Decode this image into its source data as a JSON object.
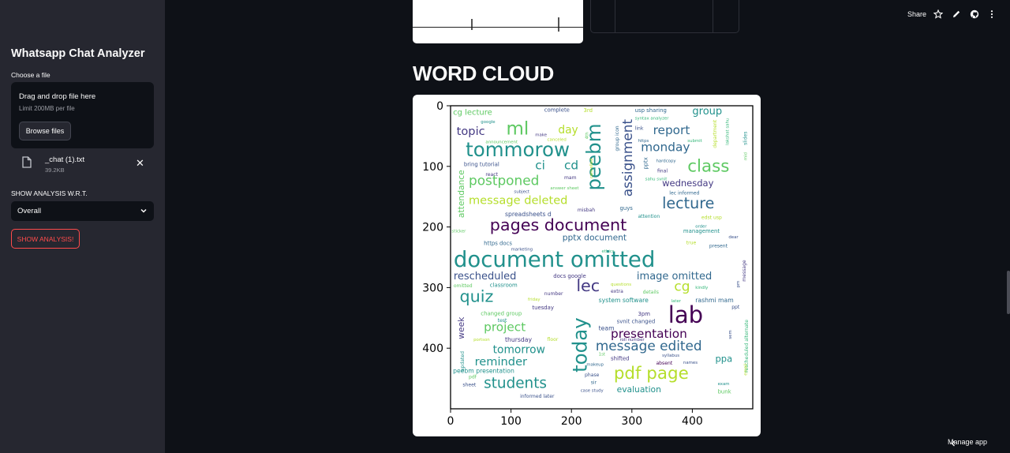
{
  "sidebar": {
    "title": "Whatsapp Chat Analyzer",
    "file_label": "Choose a file",
    "dropzone_text": "Drag and drop file here",
    "dropzone_limit": "Limit 200MB per file",
    "browse_label": "Browse files",
    "file_name": "_chat (1).txt",
    "file_size": "39.2KB",
    "analysis_label": "SHOW ANALYSIS W.R.T.",
    "select_value": "Overall",
    "show_button": "SHOW ANALYSIS!"
  },
  "toolbar": {
    "share_label": "Share",
    "icons": [
      "star-icon",
      "pencil-icon",
      "github-icon",
      "more-vert-icon"
    ]
  },
  "main": {
    "heading": "WORD CLOUD"
  },
  "footer": {
    "manage_label": "Manage app"
  },
  "colors": {
    "background": "#0e1117",
    "sidebar": "#262730",
    "accent": "#ff4b4b"
  },
  "chart_data": {
    "type": "wordcloud",
    "x_ticks": [
      "0",
      "100",
      "200",
      "300",
      "400"
    ],
    "y_ticks": [
      "0",
      "100",
      "200",
      "300",
      "400"
    ],
    "xlim": [
      0,
      500
    ],
    "ylim": [
      0,
      500
    ],
    "words": [
      {
        "t": "cg lecture",
        "x": 4,
        "y": 4,
        "s": 13,
        "c": "#5ec962"
      },
      {
        "t": "complete",
        "x": 155,
        "y": 2,
        "s": 9,
        "c": "#3b528b"
      },
      {
        "t": "3rd",
        "x": 220,
        "y": 3,
        "s": 9,
        "c": "#b5de2b"
      },
      {
        "t": "usp sharing",
        "x": 305,
        "y": 3,
        "s": 9,
        "c": "#31688e"
      },
      {
        "t": "group",
        "x": 400,
        "y": 0,
        "s": 17,
        "c": "#21918c"
      },
      {
        "t": "google",
        "x": 50,
        "y": 23,
        "s": 7,
        "c": "#21918c"
      },
      {
        "t": "syntax analyzer",
        "x": 305,
        "y": 17,
        "s": 7,
        "c": "#35b779"
      },
      {
        "t": "topic",
        "x": 10,
        "y": 32,
        "s": 19,
        "c": "#443983"
      },
      {
        "t": "ml",
        "x": 92,
        "y": 22,
        "s": 30,
        "c": "#5ec962"
      },
      {
        "t": "day",
        "x": 178,
        "y": 30,
        "s": 18,
        "c": "#b5de2b"
      },
      {
        "t": "link",
        "x": 305,
        "y": 33,
        "s": 8,
        "c": "#3b528b"
      },
      {
        "t": "report",
        "x": 335,
        "y": 30,
        "s": 20,
        "c": "#31688e"
      },
      {
        "t": "make",
        "x": 140,
        "y": 44,
        "s": 7,
        "c": "#443983"
      },
      {
        "t": "canceled",
        "x": 160,
        "y": 52,
        "s": 7,
        "c": "#b5de2b"
      },
      {
        "t": "https",
        "x": 310,
        "y": 54,
        "s": 7,
        "c": "#31688e"
      },
      {
        "t": "submit",
        "x": 392,
        "y": 54,
        "s": 7,
        "c": "#35b779"
      },
      {
        "t": "announcement",
        "x": 58,
        "y": 56,
        "s": 7,
        "c": "#5ec962"
      },
      {
        "t": "tommorow",
        "x": 25,
        "y": 56,
        "s": 32,
        "c": "#21918c"
      },
      {
        "t": "monday",
        "x": 315,
        "y": 58,
        "s": 20,
        "c": "#31688e"
      },
      {
        "t": "bring tutorial",
        "x": 22,
        "y": 92,
        "s": 9,
        "c": "#3b528b"
      },
      {
        "t": "hardcopy",
        "x": 340,
        "y": 87,
        "s": 7,
        "c": "#31688e"
      },
      {
        "t": "ci",
        "x": 140,
        "y": 88,
        "s": 20,
        "c": "#21918c"
      },
      {
        "t": "cd",
        "x": 188,
        "y": 88,
        "s": 20,
        "c": "#21918c"
      },
      {
        "t": "class",
        "x": 392,
        "y": 85,
        "s": 28,
        "c": "#5ec962"
      },
      {
        "t": "react",
        "x": 58,
        "y": 109,
        "s": 8,
        "c": "#443983"
      },
      {
        "t": "mam",
        "x": 188,
        "y": 114,
        "s": 8,
        "c": "#443983"
      },
      {
        "t": "final",
        "x": 342,
        "y": 103,
        "s": 8,
        "c": "#443983"
      },
      {
        "t": "sahu svnit",
        "x": 322,
        "y": 117,
        "s": 7,
        "c": "#35b779"
      },
      {
        "t": "postponed",
        "x": 30,
        "y": 112,
        "s": 22,
        "c": "#5ec962"
      },
      {
        "t": "wednesday",
        "x": 350,
        "y": 120,
        "s": 15,
        "c": "#443983"
      },
      {
        "t": "subject",
        "x": 105,
        "y": 138,
        "s": 7,
        "c": "#3b528b"
      },
      {
        "t": "answer sheet",
        "x": 165,
        "y": 132,
        "s": 7,
        "c": "#5ec962"
      },
      {
        "t": "lec informed",
        "x": 362,
        "y": 140,
        "s": 8,
        "c": "#31688e"
      },
      {
        "t": "message deleted",
        "x": 30,
        "y": 146,
        "s": 19,
        "c": "#b5de2b"
      },
      {
        "t": "lecture",
        "x": 350,
        "y": 148,
        "s": 25,
        "c": "#31688e"
      },
      {
        "t": "misbah",
        "x": 210,
        "y": 168,
        "s": 8,
        "c": "#443983"
      },
      {
        "t": "guys",
        "x": 280,
        "y": 164,
        "s": 9,
        "c": "#31688e"
      },
      {
        "t": "spreadsheets d",
        "x": 90,
        "y": 174,
        "s": 10,
        "c": "#3b528b"
      },
      {
        "t": "attention",
        "x": 310,
        "y": 178,
        "s": 8,
        "c": "#21918c"
      },
      {
        "t": "edst usp",
        "x": 415,
        "y": 180,
        "s": 8,
        "c": "#b5de2b"
      },
      {
        "t": "pages document",
        "x": 65,
        "y": 183,
        "s": 27,
        "c": "#440154"
      },
      {
        "t": "order",
        "x": 405,
        "y": 195,
        "s": 7,
        "c": "#21918c"
      },
      {
        "t": "sticker",
        "x": 2,
        "y": 203,
        "s": 7,
        "c": "#5ec962"
      },
      {
        "t": "management",
        "x": 385,
        "y": 202,
        "s": 9,
        "c": "#21918c"
      },
      {
        "t": "dear",
        "x": 460,
        "y": 213,
        "s": 7,
        "c": "#3b528b"
      },
      {
        "t": "pptx document",
        "x": 185,
        "y": 210,
        "s": 14,
        "c": "#31688e"
      },
      {
        "t": "https docs",
        "x": 55,
        "y": 222,
        "s": 9,
        "c": "#31688e"
      },
      {
        "t": "true",
        "x": 390,
        "y": 222,
        "s": 8,
        "c": "#b5de2b"
      },
      {
        "t": "marketing",
        "x": 100,
        "y": 233,
        "s": 7,
        "c": "#3b528b"
      },
      {
        "t": "ethics",
        "x": 250,
        "y": 236,
        "s": 7,
        "c": "#35b779"
      },
      {
        "t": "present",
        "x": 428,
        "y": 227,
        "s": 8,
        "c": "#31688e"
      },
      {
        "t": "document omitted",
        "x": 5,
        "y": 235,
        "s": 36,
        "c": "#21918c"
      },
      {
        "t": "rescheduled",
        "x": 5,
        "y": 272,
        "s": 17,
        "c": "#3b528b"
      },
      {
        "t": "docs google",
        "x": 170,
        "y": 276,
        "s": 9,
        "c": "#443983"
      },
      {
        "t": "image omitted",
        "x": 308,
        "y": 272,
        "s": 17,
        "c": "#31688e"
      },
      {
        "t": "questions",
        "x": 265,
        "y": 291,
        "s": 7,
        "c": "#b5de2b"
      },
      {
        "t": "omitted",
        "x": 5,
        "y": 293,
        "s": 8,
        "c": "#5ec962"
      },
      {
        "t": "classroom",
        "x": 65,
        "y": 291,
        "s": 9,
        "c": "#21918c"
      },
      {
        "t": "lec",
        "x": 208,
        "y": 283,
        "s": 27,
        "c": "#443983"
      },
      {
        "t": "cg",
        "x": 370,
        "y": 287,
        "s": 22,
        "c": "#b5de2b"
      },
      {
        "t": "extra",
        "x": 265,
        "y": 302,
        "s": 8,
        "c": "#443983"
      },
      {
        "t": "details",
        "x": 318,
        "y": 303,
        "s": 8,
        "c": "#5ec962"
      },
      {
        "t": "kindly",
        "x": 405,
        "y": 296,
        "s": 7,
        "c": "#35b779"
      },
      {
        "t": "number",
        "x": 155,
        "y": 306,
        "s": 8,
        "c": "#443983"
      },
      {
        "t": "quiz",
        "x": 15,
        "y": 301,
        "s": 27,
        "c": "#21918c"
      },
      {
        "t": "friday",
        "x": 128,
        "y": 316,
        "s": 7,
        "c": "#b5de2b"
      },
      {
        "t": "system software",
        "x": 245,
        "y": 316,
        "s": 10,
        "c": "#21918c"
      },
      {
        "t": "later",
        "x": 365,
        "y": 318,
        "s": 7,
        "c": "#35b779"
      },
      {
        "t": "rashmi mam",
        "x": 405,
        "y": 316,
        "s": 10,
        "c": "#31688e"
      },
      {
        "t": "tuesday",
        "x": 135,
        "y": 328,
        "s": 9,
        "c": "#443983"
      },
      {
        "t": "ppt",
        "x": 465,
        "y": 328,
        "s": 8,
        "c": "#3b528b"
      },
      {
        "t": "changed group",
        "x": 50,
        "y": 338,
        "s": 9,
        "c": "#5ec962"
      },
      {
        "t": "3pm",
        "x": 310,
        "y": 339,
        "s": 9,
        "c": "#443983"
      },
      {
        "t": "lab",
        "x": 360,
        "y": 326,
        "s": 38,
        "c": "#440154"
      },
      {
        "t": "test",
        "x": 78,
        "y": 350,
        "s": 8,
        "c": "#21918c"
      },
      {
        "t": "svnit changed",
        "x": 275,
        "y": 351,
        "s": 9,
        "c": "#3b528b"
      },
      {
        "t": "project",
        "x": 55,
        "y": 355,
        "s": 20,
        "c": "#5ec962"
      },
      {
        "t": "team",
        "x": 245,
        "y": 362,
        "s": 10,
        "c": "#3b528b"
      },
      {
        "t": "presentation",
        "x": 265,
        "y": 366,
        "s": 20,
        "c": "#440154"
      },
      {
        "t": "portson",
        "x": 38,
        "y": 382,
        "s": 7,
        "c": "#b5de2b"
      },
      {
        "t": "thursday",
        "x": 90,
        "y": 381,
        "s": 10,
        "c": "#443983"
      },
      {
        "t": "floor",
        "x": 160,
        "y": 381,
        "s": 8,
        "c": "#b5de2b"
      },
      {
        "t": "roll number",
        "x": 280,
        "y": 382,
        "s": 7,
        "c": "#443983"
      },
      {
        "t": "message edited",
        "x": 240,
        "y": 385,
        "s": 22,
        "c": "#31688e"
      },
      {
        "t": "tomorrow",
        "x": 70,
        "y": 393,
        "s": 18,
        "c": "#21918c"
      },
      {
        "t": "1st",
        "x": 245,
        "y": 406,
        "s": 7,
        "c": "#5ec962"
      },
      {
        "t": "syllabus",
        "x": 350,
        "y": 408,
        "s": 7,
        "c": "#3b528b"
      },
      {
        "t": "shifted",
        "x": 265,
        "y": 412,
        "s": 9,
        "c": "#443983"
      },
      {
        "t": "ppa",
        "x": 438,
        "y": 410,
        "s": 15,
        "c": "#21918c"
      },
      {
        "t": "reminder",
        "x": 40,
        "y": 412,
        "s": 19,
        "c": "#21918c"
      },
      {
        "t": "absent",
        "x": 340,
        "y": 420,
        "s": 8,
        "c": "#440154"
      },
      {
        "t": "names",
        "x": 385,
        "y": 420,
        "s": 7,
        "c": "#3b528b"
      },
      {
        "t": "makeup",
        "x": 225,
        "y": 423,
        "s": 7,
        "c": "#31688e"
      },
      {
        "t": "peebm presentation",
        "x": 4,
        "y": 432,
        "s": 10,
        "c": "#21918c"
      },
      {
        "t": "pdf page",
        "x": 270,
        "y": 427,
        "s": 28,
        "c": "#b5de2b"
      },
      {
        "t": "phase",
        "x": 222,
        "y": 440,
        "s": 8,
        "c": "#3b528b"
      },
      {
        "t": "pdf",
        "x": 30,
        "y": 443,
        "s": 8,
        "c": "#5ec962"
      },
      {
        "t": "sir",
        "x": 232,
        "y": 452,
        "s": 8,
        "c": "#31688e"
      },
      {
        "t": "exam",
        "x": 442,
        "y": 455,
        "s": 7,
        "c": "#21918c"
      },
      {
        "t": "sheet",
        "x": 20,
        "y": 456,
        "s": 8,
        "c": "#3b528b"
      },
      {
        "t": "students",
        "x": 55,
        "y": 445,
        "s": 24,
        "c": "#21918c"
      },
      {
        "t": "bunk",
        "x": 442,
        "y": 467,
        "s": 9,
        "c": "#5ec962"
      },
      {
        "t": "case study",
        "x": 215,
        "y": 466,
        "s": 7,
        "c": "#3b528b"
      },
      {
        "t": "evaluation",
        "x": 275,
        "y": 461,
        "s": 14,
        "c": "#21918c"
      },
      {
        "t": "informed later",
        "x": 115,
        "y": 475,
        "s": 8,
        "c": "#3b528b"
      }
    ],
    "vertical_words": [
      {
        "t": "peebm",
        "x": 248,
        "y": 140,
        "s": 32,
        "c": "#21918c"
      },
      {
        "t": "assignment",
        "x": 300,
        "y": 150,
        "s": 22,
        "c": "#3b528b"
      },
      {
        "t": "attendance",
        "x": 22,
        "y": 185,
        "s": 14,
        "c": "#5ec962"
      },
      {
        "t": "today",
        "x": 225,
        "y": 440,
        "s": 32,
        "c": "#21918c"
      },
      {
        "t": "week",
        "x": 22,
        "y": 385,
        "s": 14,
        "c": "#443983"
      },
      {
        "t": "group icon",
        "x": 278,
        "y": 75,
        "s": 8,
        "c": "#31688e"
      },
      {
        "t": "4th",
        "x": 228,
        "y": 55,
        "s": 7,
        "c": "#5ec962"
      },
      {
        "t": "cancelled",
        "x": 235,
        "y": 120,
        "s": 7,
        "c": "#b5de2b"
      },
      {
        "t": "pptx",
        "x": 326,
        "y": 105,
        "s": 9,
        "c": "#31688e"
      },
      {
        "t": "department",
        "x": 440,
        "y": 70,
        "s": 8,
        "c": "#b5de2b"
      },
      {
        "t": "lakshat sahu",
        "x": 460,
        "y": 65,
        "s": 7,
        "c": "#35b779"
      },
      {
        "t": "slides",
        "x": 490,
        "y": 65,
        "s": 8,
        "c": "#21918c"
      },
      {
        "t": "mid",
        "x": 490,
        "y": 90,
        "s": 7,
        "c": "#5ec962"
      },
      {
        "t": "message",
        "x": 488,
        "y": 290,
        "s": 8,
        "c": "#443983"
      },
      {
        "t": "pm",
        "x": 478,
        "y": 300,
        "s": 7,
        "c": "#3b528b"
      },
      {
        "t": "rescheduled alternate",
        "x": 492,
        "y": 440,
        "s": 8,
        "c": "#35b779"
      },
      {
        "t": "updated",
        "x": 22,
        "y": 438,
        "s": 8,
        "c": "#21918c"
      },
      {
        "t": "sem",
        "x": 465,
        "y": 385,
        "s": 7,
        "c": "#3b528b"
      },
      {
        "t": "email",
        "x": 490,
        "y": 445,
        "s": 7,
        "c": "#b5de2b"
      }
    ]
  }
}
